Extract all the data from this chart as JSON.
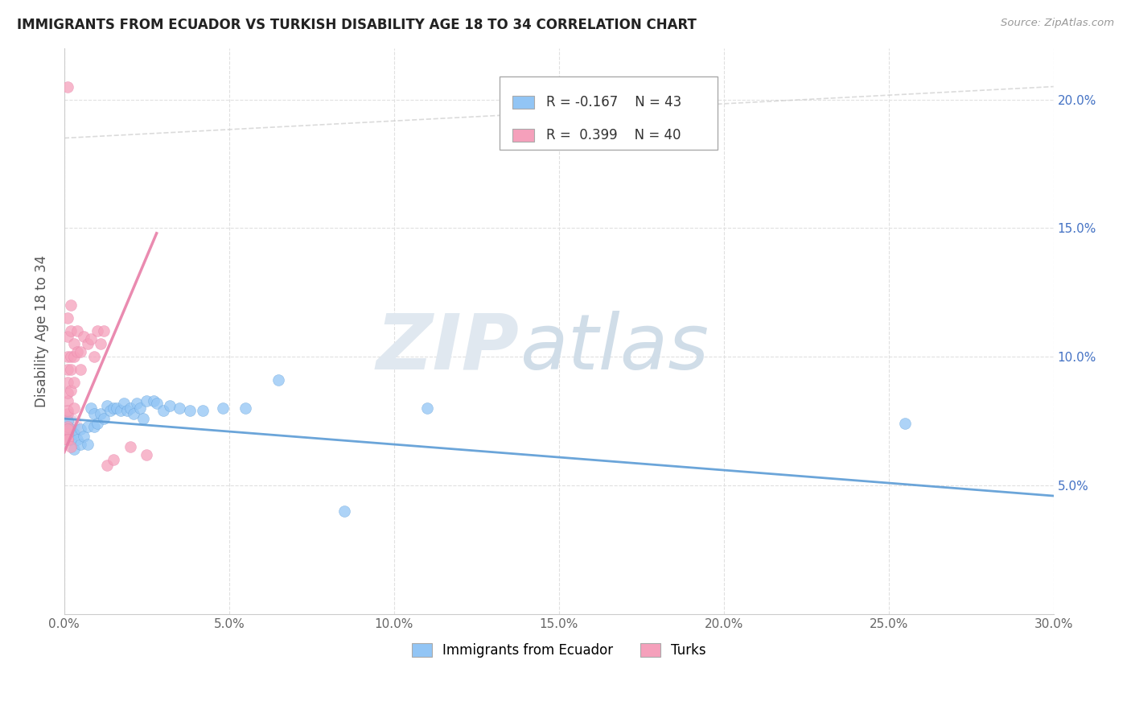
{
  "title": "IMMIGRANTS FROM ECUADOR VS TURKISH DISABILITY AGE 18 TO 34 CORRELATION CHART",
  "source": "Source: ZipAtlas.com",
  "xlabel_label": "Immigrants from Ecuador",
  "ylabel_label": "Disability Age 18 to 34",
  "xlim": [
    0.0,
    0.3
  ],
  "ylim": [
    0.0,
    0.22
  ],
  "xtick_vals": [
    0.0,
    0.05,
    0.1,
    0.15,
    0.2,
    0.25,
    0.3
  ],
  "ytick_vals": [
    0.05,
    0.1,
    0.15,
    0.2
  ],
  "ytick_labels_right": [
    "5.0%",
    "10.0%",
    "15.0%",
    "20.0%"
  ],
  "xtick_labels": [
    "0.0%",
    "5.0%",
    "10.0%",
    "15.0%",
    "20.0%",
    "25.0%",
    "30.0%"
  ],
  "legend_line1": "R = -0.167    N = 43",
  "legend_line2": "R =  0.399    N = 40",
  "color_ecuador": "#92c5f5",
  "color_turks": "#f5a0bb",
  "color_ecuador_trend": "#5b9bd5",
  "color_turks_trend": "#e87fa8",
  "ecuador_scatter": [
    [
      0.001,
      0.075
    ],
    [
      0.002,
      0.068
    ],
    [
      0.002,
      0.072
    ],
    [
      0.003,
      0.07
    ],
    [
      0.003,
      0.064
    ],
    [
      0.004,
      0.068
    ],
    [
      0.005,
      0.072
    ],
    [
      0.005,
      0.066
    ],
    [
      0.006,
      0.069
    ],
    [
      0.007,
      0.073
    ],
    [
      0.007,
      0.066
    ],
    [
      0.008,
      0.08
    ],
    [
      0.009,
      0.073
    ],
    [
      0.009,
      0.078
    ],
    [
      0.01,
      0.074
    ],
    [
      0.011,
      0.078
    ],
    [
      0.012,
      0.076
    ],
    [
      0.013,
      0.081
    ],
    [
      0.014,
      0.079
    ],
    [
      0.015,
      0.08
    ],
    [
      0.016,
      0.08
    ],
    [
      0.017,
      0.079
    ],
    [
      0.018,
      0.082
    ],
    [
      0.019,
      0.079
    ],
    [
      0.02,
      0.08
    ],
    [
      0.021,
      0.078
    ],
    [
      0.022,
      0.082
    ],
    [
      0.023,
      0.08
    ],
    [
      0.024,
      0.076
    ],
    [
      0.025,
      0.083
    ],
    [
      0.027,
      0.083
    ],
    [
      0.028,
      0.082
    ],
    [
      0.03,
      0.079
    ],
    [
      0.032,
      0.081
    ],
    [
      0.035,
      0.08
    ],
    [
      0.038,
      0.079
    ],
    [
      0.042,
      0.079
    ],
    [
      0.048,
      0.08
    ],
    [
      0.055,
      0.08
    ],
    [
      0.065,
      0.091
    ],
    [
      0.085,
      0.04
    ],
    [
      0.11,
      0.08
    ],
    [
      0.255,
      0.074
    ]
  ],
  "turks_scatter": [
    [
      0.001,
      0.07
    ],
    [
      0.001,
      0.073
    ],
    [
      0.001,
      0.068
    ],
    [
      0.001,
      0.078
    ],
    [
      0.001,
      0.083
    ],
    [
      0.001,
      0.072
    ],
    [
      0.001,
      0.079
    ],
    [
      0.001,
      0.086
    ],
    [
      0.001,
      0.09
    ],
    [
      0.001,
      0.068
    ],
    [
      0.001,
      0.095
    ],
    [
      0.001,
      0.1
    ],
    [
      0.001,
      0.108
    ],
    [
      0.001,
      0.115
    ],
    [
      0.002,
      0.087
    ],
    [
      0.002,
      0.095
    ],
    [
      0.002,
      0.1
    ],
    [
      0.002,
      0.11
    ],
    [
      0.002,
      0.12
    ],
    [
      0.002,
      0.065
    ],
    [
      0.003,
      0.08
    ],
    [
      0.003,
      0.09
    ],
    [
      0.003,
      0.1
    ],
    [
      0.003,
      0.105
    ],
    [
      0.004,
      0.102
    ],
    [
      0.004,
      0.11
    ],
    [
      0.005,
      0.095
    ],
    [
      0.005,
      0.102
    ],
    [
      0.006,
      0.108
    ],
    [
      0.007,
      0.105
    ],
    [
      0.008,
      0.107
    ],
    [
      0.009,
      0.1
    ],
    [
      0.01,
      0.11
    ],
    [
      0.011,
      0.105
    ],
    [
      0.012,
      0.11
    ],
    [
      0.013,
      0.058
    ],
    [
      0.015,
      0.06
    ],
    [
      0.02,
      0.065
    ],
    [
      0.025,
      0.062
    ],
    [
      0.001,
      0.205
    ]
  ],
  "ecuador_trend_x": [
    0.0,
    0.3
  ],
  "ecuador_trend_y": [
    0.076,
    0.046
  ],
  "turks_trend_x": [
    0.0,
    0.028
  ],
  "turks_trend_y": [
    0.063,
    0.148
  ],
  "grid_color": "#e0e0e0",
  "background_color": "#ffffff"
}
